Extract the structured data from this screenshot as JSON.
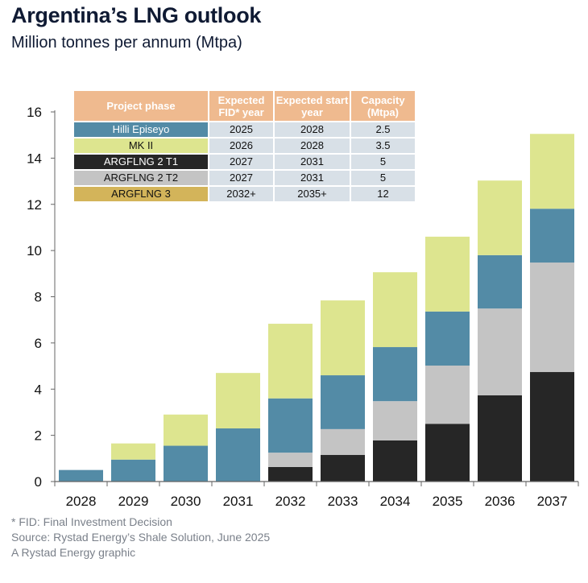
{
  "title": "Argentina’s LNG outlook",
  "subtitle": "Million tonnes per annum (Mtpa)",
  "table": {
    "headers": [
      "Project phase",
      "Expected FID* year",
      "Expected start year",
      "Capacity (Mtpa)"
    ],
    "rows": [
      {
        "project": "Hilli Episeyo",
        "fid": "2025",
        "start": "2028",
        "capacity": "2.5",
        "color": "#538ba6",
        "text_color": "#ffffff"
      },
      {
        "project": "MK II",
        "fid": "2026",
        "start": "2028",
        "capacity": "3.5",
        "color": "#dde58f",
        "text_color": "#111111"
      },
      {
        "project": "ARGFLNG 2 T1",
        "fid": "2027",
        "start": "2031",
        "capacity": "5",
        "color": "#262626",
        "text_color": "#ffffff"
      },
      {
        "project": "ARGFLNG 2 T2",
        "fid": "2027",
        "start": "2031",
        "capacity": "5",
        "color": "#c4c4c4",
        "text_color": "#111111"
      },
      {
        "project": "ARGFLNG 3",
        "fid": "2032+",
        "start": "2035+",
        "capacity": "12",
        "color": "#d3b45a",
        "text_color": "#111111"
      }
    ]
  },
  "chart_data": {
    "type": "bar",
    "stacked": true,
    "categories": [
      "2028",
      "2029",
      "2030",
      "2031",
      "2032",
      "2033",
      "2034",
      "2035",
      "2036",
      "2037"
    ],
    "series": [
      {
        "name": "ARGFLNG 2 T1",
        "color": "#262626",
        "values": [
          0,
          0,
          0,
          0,
          0.63,
          1.15,
          1.78,
          2.5,
          3.73,
          4.74
        ]
      },
      {
        "name": "ARGFLNG 2 T2",
        "color": "#c4c4c4",
        "values": [
          0,
          0,
          0,
          0,
          0.62,
          1.12,
          1.7,
          2.52,
          3.76,
          4.74
        ]
      },
      {
        "name": "Hilli Episeyo",
        "color": "#538ba6",
        "values": [
          0.5,
          0.95,
          1.55,
          2.3,
          2.35,
          2.33,
          2.34,
          2.34,
          2.31,
          2.33
        ]
      },
      {
        "name": "MK II",
        "color": "#dde58f",
        "values": [
          0,
          0.7,
          1.35,
          2.4,
          3.23,
          3.24,
          3.24,
          3.24,
          3.23,
          3.24
        ]
      }
    ],
    "ylim": [
      0,
      16
    ],
    "yticks": [
      0,
      2,
      4,
      6,
      8,
      10,
      12,
      14,
      16
    ],
    "grid": false
  },
  "footnotes": [
    "* FID: Final Investment Decision",
    "Source: Rystad Energy’s Shale Solution, June 2025",
    "A Rystad Energy graphic"
  ]
}
